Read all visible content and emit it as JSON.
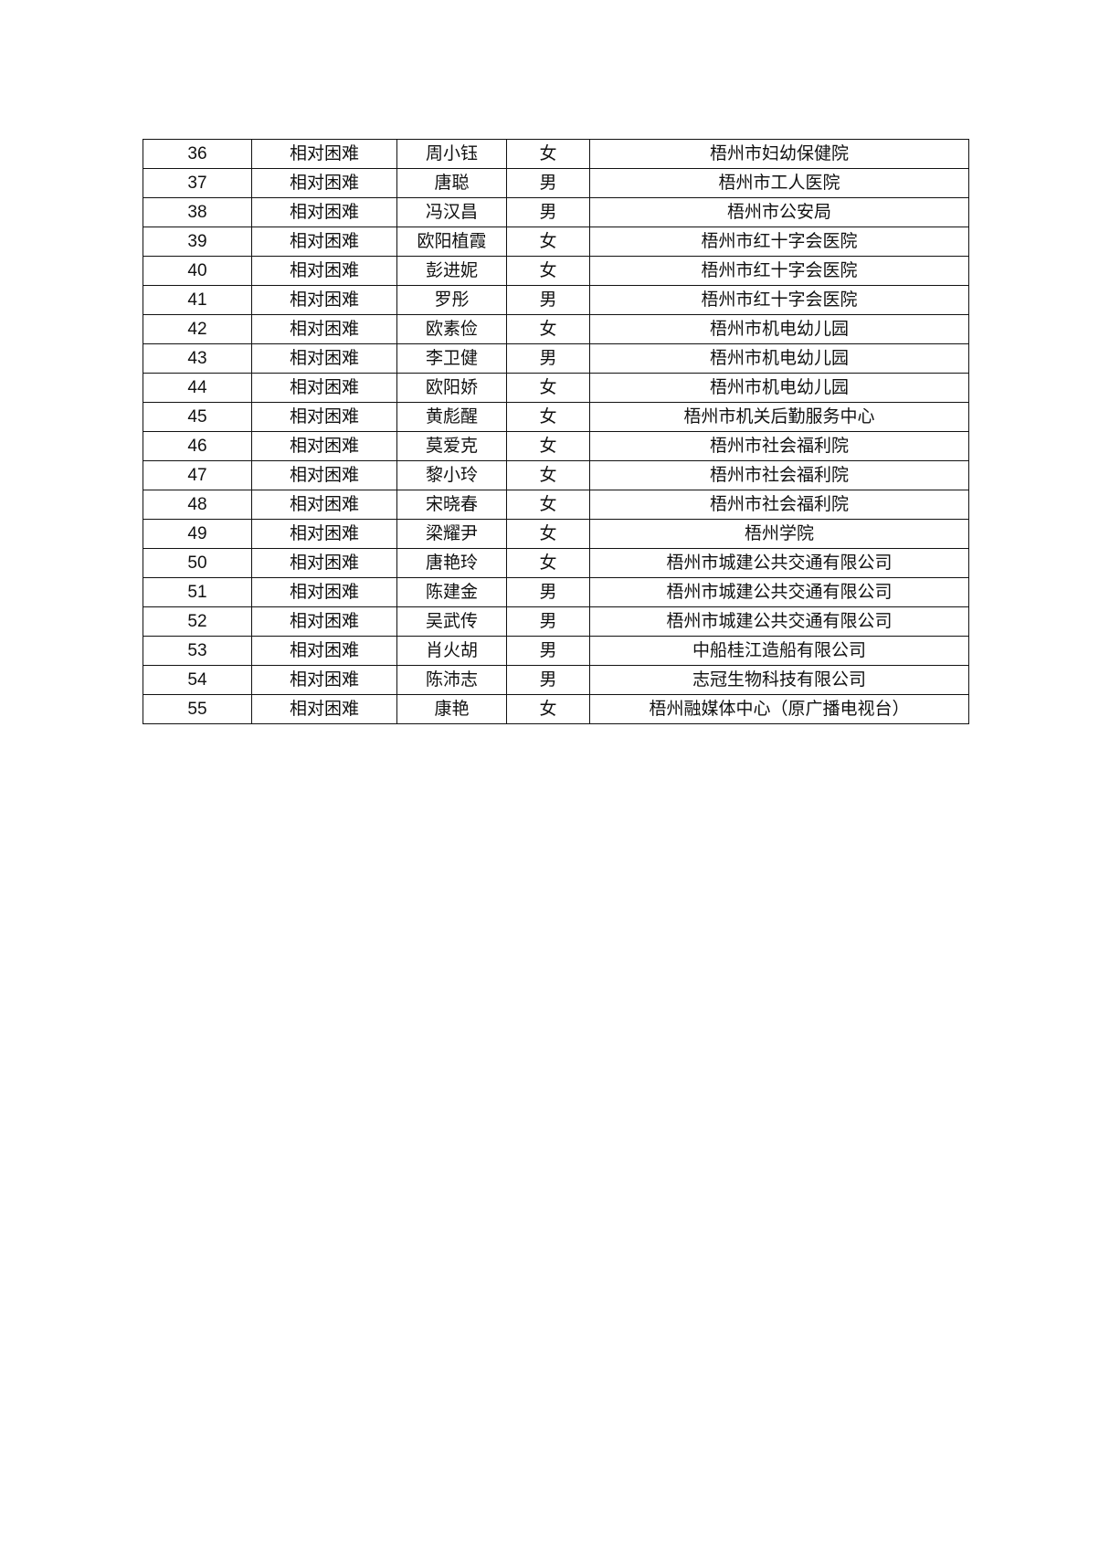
{
  "table": {
    "rows": [
      [
        "36",
        "相对困难",
        "周小钰",
        "女",
        "梧州市妇幼保健院"
      ],
      [
        "37",
        "相对困难",
        "唐聪",
        "男",
        "梧州市工人医院"
      ],
      [
        "38",
        "相对困难",
        "冯汉昌",
        "男",
        "梧州市公安局"
      ],
      [
        "39",
        "相对困难",
        "欧阳植霞",
        "女",
        "梧州市红十字会医院"
      ],
      [
        "40",
        "相对困难",
        "彭进妮",
        "女",
        "梧州市红十字会医院"
      ],
      [
        "41",
        "相对困难",
        "罗彤",
        "男",
        "梧州市红十字会医院"
      ],
      [
        "42",
        "相对困难",
        "欧素俭",
        "女",
        "梧州市机电幼儿园"
      ],
      [
        "43",
        "相对困难",
        "李卫健",
        "男",
        "梧州市机电幼儿园"
      ],
      [
        "44",
        "相对困难",
        "欧阳娇",
        "女",
        "梧州市机电幼儿园"
      ],
      [
        "45",
        "相对困难",
        "黄彪醒",
        "女",
        "梧州市机关后勤服务中心"
      ],
      [
        "46",
        "相对困难",
        "莫爱克",
        "女",
        "梧州市社会福利院"
      ],
      [
        "47",
        "相对困难",
        "黎小玲",
        "女",
        "梧州市社会福利院"
      ],
      [
        "48",
        "相对困难",
        "宋晓春",
        "女",
        "梧州市社会福利院"
      ],
      [
        "49",
        "相对困难",
        "梁耀尹",
        "女",
        "梧州学院"
      ],
      [
        "50",
        "相对困难",
        "唐艳玲",
        "女",
        "梧州市城建公共交通有限公司"
      ],
      [
        "51",
        "相对困难",
        "陈建金",
        "男",
        "梧州市城建公共交通有限公司"
      ],
      [
        "52",
        "相对困难",
        "吴武传",
        "男",
        "梧州市城建公共交通有限公司"
      ],
      [
        "53",
        "相对困难",
        "肖火胡",
        "男",
        "中船桂江造船有限公司"
      ],
      [
        "54",
        "相对困难",
        "陈沛志",
        "男",
        "志冠生物科技有限公司"
      ],
      [
        "55",
        "相对困难",
        "康艳",
        "女",
        "梧州融媒体中心（原广播电视台）"
      ]
    ]
  }
}
